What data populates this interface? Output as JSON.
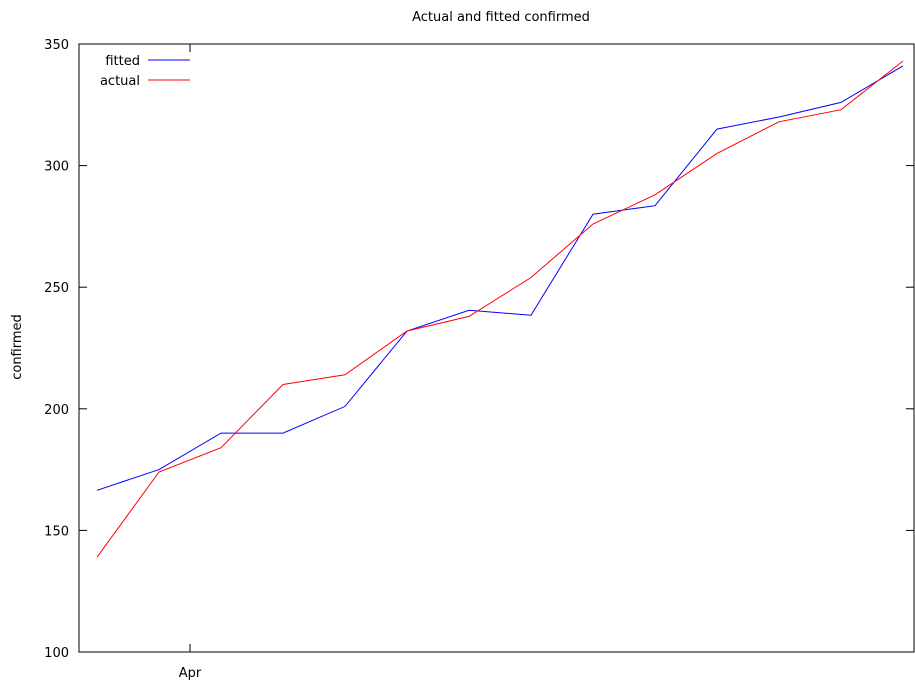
{
  "chart_data": {
    "type": "line",
    "title": "Actual and fitted confirmed",
    "xlabel": "",
    "ylabel": "confirmed",
    "ylim": [
      100,
      350
    ],
    "yticks": [
      100,
      150,
      200,
      250,
      300,
      350
    ],
    "xticks": [
      {
        "index": 1.5,
        "label": "Apr"
      }
    ],
    "x_count": 14,
    "grid": false,
    "legend_position": "top-left",
    "series": [
      {
        "name": "fitted",
        "color": "#0000ff",
        "values": [
          166.5,
          175,
          190,
          190,
          201,
          232,
          240.5,
          238.5,
          280,
          283.5,
          315,
          320,
          326,
          341
        ]
      },
      {
        "name": "actual",
        "color": "#ff0000",
        "values": [
          139,
          174,
          184,
          210,
          214,
          232,
          238,
          254,
          276,
          288,
          305,
          318,
          323,
          343
        ]
      }
    ]
  }
}
